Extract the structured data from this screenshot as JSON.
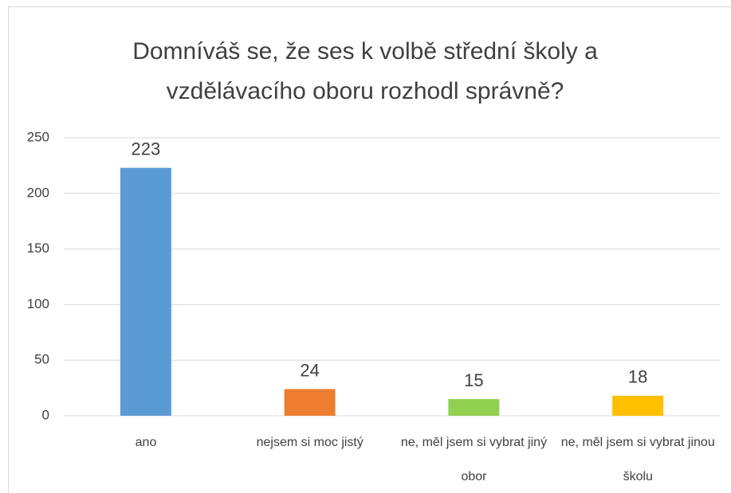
{
  "chart_data": {
    "type": "bar",
    "title": "Domníváš se, že ses k volbě střední školy a vzdělávacího oboru rozhodl správně?",
    "categories": [
      "ano",
      "nejsem si moc jistý",
      "ne, měl jsem si vybrat jiný obor",
      "ne, měl jsem si vybrat jinou školu"
    ],
    "values": [
      223,
      24,
      15,
      18
    ],
    "colors": [
      "#5b9bd5",
      "#ed7d31",
      "#92d050",
      "#ffc000"
    ],
    "ylim": [
      0,
      250
    ],
    "yticks": [
      0,
      50,
      100,
      150,
      200,
      250
    ],
    "grid": true
  }
}
